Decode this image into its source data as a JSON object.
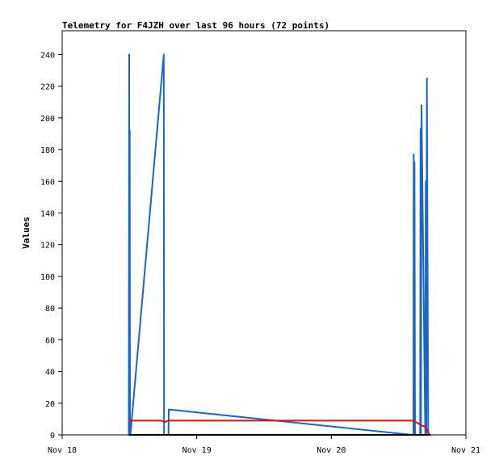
{
  "chart_data": {
    "type": "line",
    "title": "Telemetry for F4JZH over last 96 hours (72 points)",
    "xlabel": "",
    "ylabel": "Values",
    "xlim": [
      "Nov 18",
      "Nov 21"
    ],
    "ylim": [
      0,
      255
    ],
    "x_ticks": [
      "Nov 18",
      "Nov 19",
      "Nov 20",
      "Nov 21"
    ],
    "y_ticks": [
      0,
      20,
      40,
      60,
      80,
      100,
      120,
      140,
      160,
      180,
      200,
      220,
      240
    ],
    "grid": false,
    "legend": "none",
    "series": [
      {
        "color": "#1a66c8",
        "x": [
          0.495,
          0.498,
          0.5,
          0.502,
          0.504,
          0.507,
          0.755,
          0.757,
          0.76,
          0.79,
          0.792,
          0.795,
          2.6,
          2.61,
          2.612,
          2.615,
          2.618,
          2.622,
          2.66,
          2.663,
          2.666,
          2.67,
          2.698,
          2.702,
          2.706,
          2.71,
          2.72,
          2.73,
          2.735,
          2.74
        ],
        "values": [
          0,
          240,
          0,
          192,
          0,
          0,
          240,
          0,
          0,
          0,
          16,
          16,
          0,
          0,
          177,
          0,
          172,
          0,
          0,
          193,
          0,
          208,
          0,
          160,
          0,
          225,
          0,
          0,
          0,
          0
        ]
      },
      {
        "color": "#dd1111",
        "x": [
          0.495,
          0.5,
          0.74,
          0.76,
          0.79,
          0.8,
          2.6,
          2.61,
          2.67,
          2.7,
          2.73,
          2.735
        ],
        "values": [
          9,
          9,
          9,
          8,
          9,
          9,
          9,
          9,
          6,
          5,
          0,
          0
        ]
      },
      {
        "color": "#000000",
        "x": [
          0.495,
          2.74
        ],
        "values": [
          0,
          0
        ]
      }
    ]
  }
}
